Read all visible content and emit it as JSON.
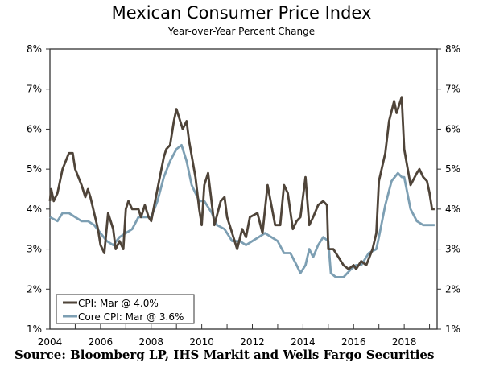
{
  "chart_data": {
    "type": "line",
    "title": "Mexican Consumer Price Index",
    "subtitle": "Year-over-Year Percent Change",
    "source": "Source: Bloomberg LP, IHS Markit and Wells Fargo Securities",
    "xlim": [
      2004,
      2019.3
    ],
    "ylim": [
      1,
      8
    ],
    "x_ticks": [
      "2004",
      "2006",
      "2008",
      "2010",
      "2012",
      "2014",
      "2016",
      "2018"
    ],
    "y_ticks": [
      "1%",
      "2%",
      "3%",
      "4%",
      "5%",
      "6%",
      "7%",
      "8%"
    ],
    "legend_position": "bottom-left",
    "series": [
      {
        "name": "CPI: Mar @ 4.0%",
        "color": "#4f4439",
        "x": [
          2004.0,
          2004.05,
          2004.15,
          2004.3,
          2004.5,
          2004.75,
          2004.9,
          2005.0,
          2005.25,
          2005.4,
          2005.5,
          2005.6,
          2005.75,
          2005.9,
          2006.0,
          2006.15,
          2006.3,
          2006.5,
          2006.6,
          2006.75,
          2006.9,
          2007.0,
          2007.1,
          2007.25,
          2007.5,
          2007.6,
          2007.75,
          2007.9,
          2008.0,
          2008.25,
          2008.5,
          2008.6,
          2008.75,
          2008.9,
          2009.0,
          2009.1,
          2009.25,
          2009.4,
          2009.5,
          2009.75,
          2009.9,
          2010.0,
          2010.1,
          2010.25,
          2010.5,
          2010.75,
          2010.9,
          2011.0,
          2011.2,
          2011.4,
          2011.6,
          2011.75,
          2011.9,
          2012.2,
          2012.4,
          2012.6,
          2012.75,
          2012.9,
          2013.1,
          2013.25,
          2013.4,
          2013.6,
          2013.75,
          2013.9,
          2014.1,
          2014.25,
          2014.4,
          2014.6,
          2014.8,
          2014.95,
          2015.0,
          2015.2,
          2015.4,
          2015.6,
          2015.8,
          2016.0,
          2016.1,
          2016.3,
          2016.5,
          2016.75,
          2016.9,
          2017.0,
          2017.25,
          2017.4,
          2017.6,
          2017.7,
          2017.9,
          2018.0,
          2018.25,
          2018.5,
          2018.6,
          2018.75,
          2018.9,
          2019.0,
          2019.1,
          2019.2
        ],
        "y": [
          4.2,
          4.5,
          4.2,
          4.4,
          5.0,
          5.4,
          5.4,
          5.0,
          4.6,
          4.3,
          4.5,
          4.3,
          3.9,
          3.5,
          3.1,
          2.9,
          3.9,
          3.5,
          3.0,
          3.2,
          3.0,
          4.0,
          4.2,
          4.0,
          4.0,
          3.8,
          4.1,
          3.8,
          3.7,
          4.5,
          5.3,
          5.5,
          5.6,
          6.2,
          6.5,
          6.3,
          6.0,
          6.2,
          5.7,
          4.8,
          4.0,
          3.6,
          4.6,
          4.9,
          3.6,
          4.2,
          4.3,
          3.8,
          3.4,
          3.0,
          3.5,
          3.3,
          3.8,
          3.9,
          3.4,
          4.6,
          4.1,
          3.6,
          3.6,
          4.6,
          4.4,
          3.5,
          3.7,
          3.8,
          4.8,
          3.6,
          3.8,
          4.1,
          4.2,
          4.1,
          3.0,
          3.0,
          2.8,
          2.6,
          2.5,
          2.6,
          2.5,
          2.7,
          2.6,
          3.0,
          3.4,
          4.7,
          5.4,
          6.2,
          6.7,
          6.4,
          6.8,
          5.5,
          4.6,
          4.9,
          5.0,
          4.8,
          4.7,
          4.4,
          4.0,
          4.0
        ]
      },
      {
        "name": "Core CPI: Mar @ 3.6%",
        "color": "#7d9fb3",
        "x": [
          2004.0,
          2004.3,
          2004.5,
          2004.75,
          2005.0,
          2005.25,
          2005.5,
          2005.75,
          2006.0,
          2006.25,
          2006.5,
          2006.75,
          2007.0,
          2007.25,
          2007.5,
          2007.75,
          2008.0,
          2008.25,
          2008.5,
          2008.75,
          2009.0,
          2009.2,
          2009.4,
          2009.6,
          2009.9,
          2010.1,
          2010.4,
          2010.6,
          2010.9,
          2011.2,
          2011.5,
          2011.75,
          2012.0,
          2012.25,
          2012.5,
          2012.75,
          2013.0,
          2013.25,
          2013.5,
          2013.75,
          2013.9,
          2014.1,
          2014.25,
          2014.4,
          2014.6,
          2014.8,
          2015.0,
          2015.1,
          2015.3,
          2015.6,
          2015.9,
          2016.1,
          2016.3,
          2016.6,
          2016.9,
          2017.0,
          2017.25,
          2017.5,
          2017.75,
          2017.9,
          2018.0,
          2018.25,
          2018.5,
          2018.75,
          2019.0,
          2019.2
        ],
        "y": [
          3.8,
          3.7,
          3.9,
          3.9,
          3.8,
          3.7,
          3.7,
          3.6,
          3.4,
          3.2,
          3.1,
          3.3,
          3.4,
          3.5,
          3.8,
          3.8,
          3.8,
          4.2,
          4.8,
          5.2,
          5.5,
          5.6,
          5.2,
          4.6,
          4.2,
          4.2,
          3.9,
          3.6,
          3.5,
          3.2,
          3.2,
          3.1,
          3.2,
          3.3,
          3.4,
          3.3,
          3.2,
          2.9,
          2.9,
          2.6,
          2.4,
          2.6,
          3.0,
          2.8,
          3.1,
          3.3,
          3.2,
          2.4,
          2.3,
          2.3,
          2.5,
          2.6,
          2.6,
          2.9,
          3.0,
          3.3,
          4.1,
          4.7,
          4.9,
          4.8,
          4.8,
          4.0,
          3.7,
          3.6,
          3.6,
          3.6
        ]
      }
    ]
  }
}
